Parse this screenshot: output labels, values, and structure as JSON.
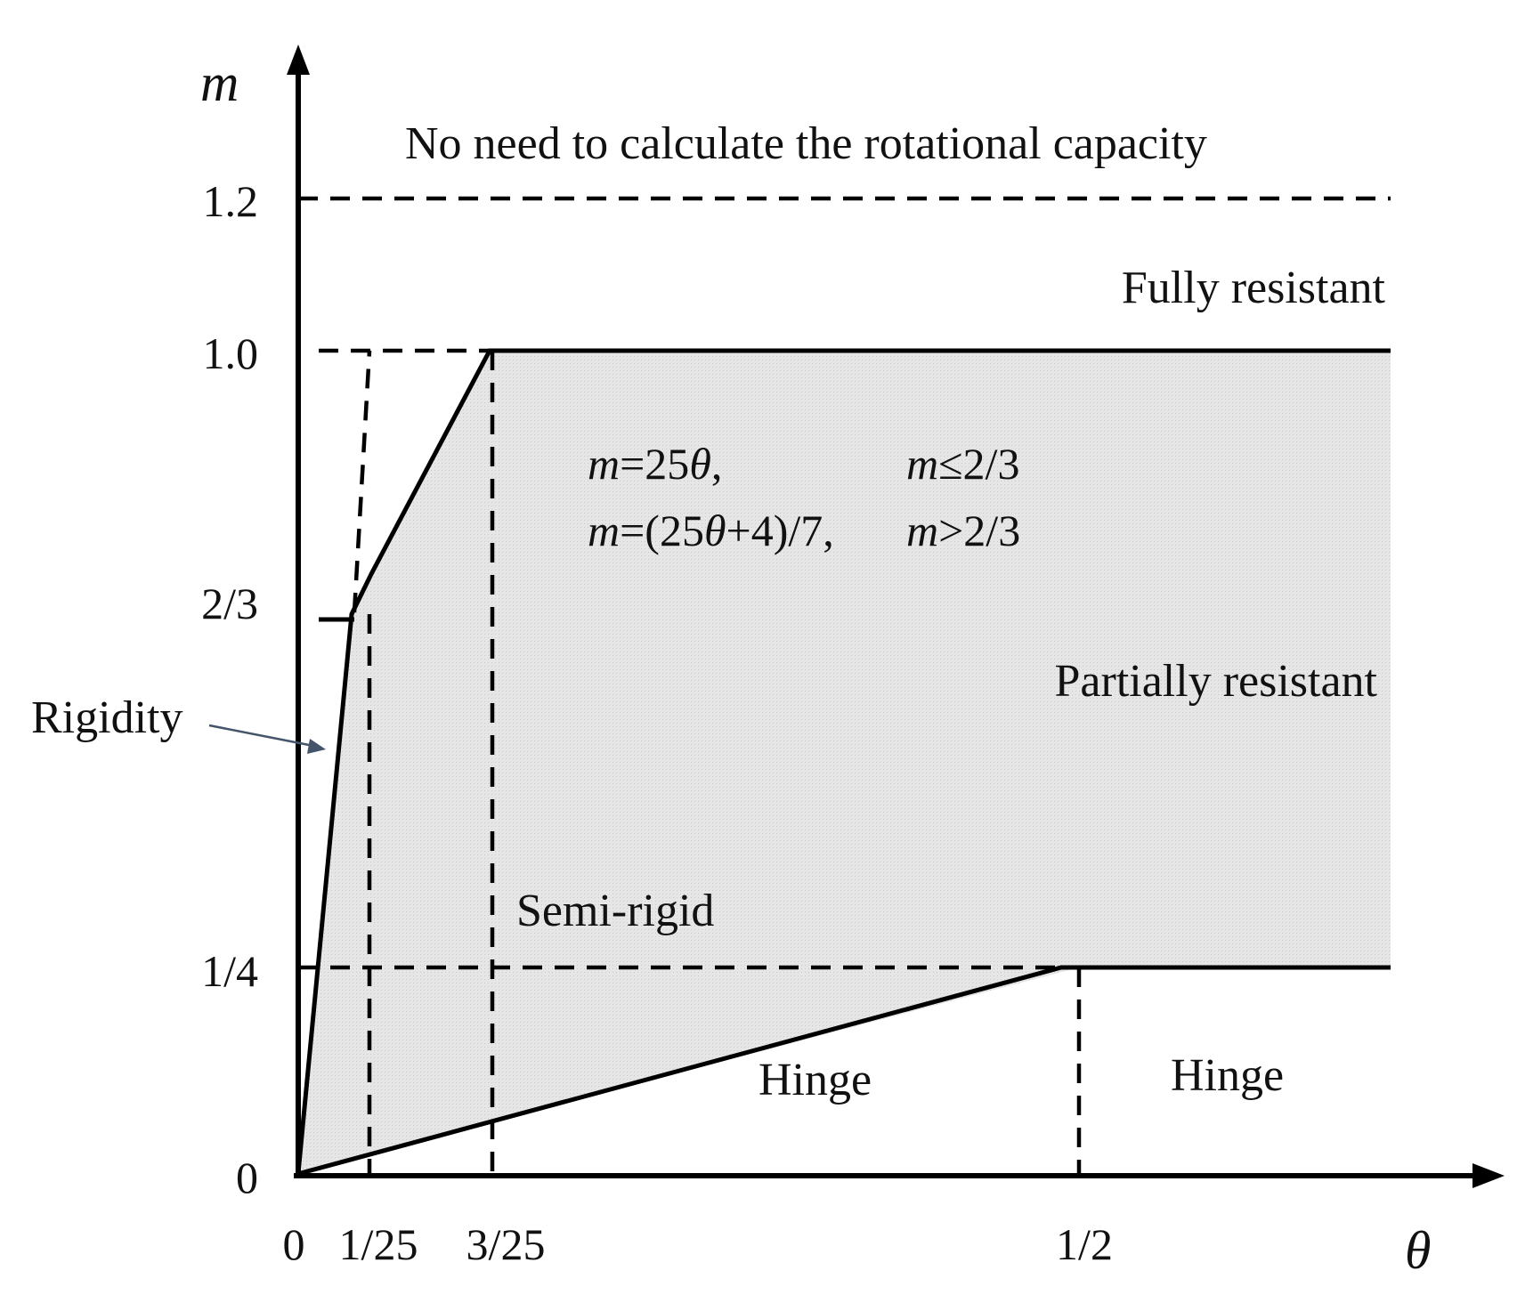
{
  "diagram": {
    "axes": {
      "y_label": "m",
      "x_label": "θ",
      "y_ticks": [
        "1.2",
        "1.0",
        "2/3",
        "1/4",
        "0"
      ],
      "x_ticks": [
        "0",
        "1/25",
        "3/25",
        "1/2"
      ]
    },
    "regions": {
      "no_need": "No need to calculate the rotational capacity",
      "fully_resistant": "Fully resistant",
      "partially_resistant": "Partially resistant",
      "semi_rigid": "Semi-rigid",
      "hinge_left": "Hinge",
      "hinge_right": "Hinge",
      "rigidity": "Rigidity"
    },
    "equations": {
      "eq1_lhs": "m",
      "eq1_mid": "=25",
      "eq1_theta": "θ",
      "eq1_end": ",",
      "eq1_cond_m": "m",
      "eq1_cond": "≤2/3",
      "eq2_lhs": "m",
      "eq2_mid": "=(25",
      "eq2_theta": "θ",
      "eq2_end": "+4)/7,",
      "eq2_cond_m": "m",
      "eq2_cond": ">2/3"
    },
    "colors": {
      "line": "#000000",
      "fill": "#e3e3e3",
      "arrow": "#44546a"
    }
  }
}
